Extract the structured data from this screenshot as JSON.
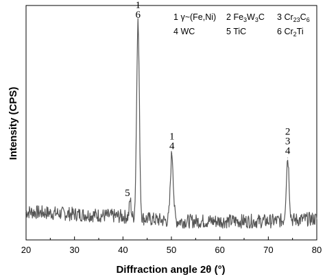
{
  "chart_data": {
    "type": "line",
    "xlabel": "Diffraction angle 2θ (°)",
    "ylabel": "Intensity (CPS)",
    "xlim": [
      20,
      80
    ],
    "x_ticks": [
      20,
      30,
      40,
      50,
      60,
      70,
      80
    ],
    "y_tick_labels": "none",
    "grid": false,
    "line_color": "#555555",
    "series": [
      {
        "peaks": [
          {
            "x": 41.5,
            "y": 0.17
          },
          {
            "x": 43.1,
            "y": 0.93
          },
          {
            "x": 50.1,
            "y": 0.37
          },
          {
            "x": 74.0,
            "y": 0.35
          }
        ],
        "baseline": [
          {
            "x": 20,
            "y": 0.12
          },
          {
            "x": 30,
            "y": 0.11
          },
          {
            "x": 40,
            "y": 0.1
          },
          {
            "x": 50,
            "y": 0.08
          },
          {
            "x": 60,
            "y": 0.08
          },
          {
            "x": 70,
            "y": 0.08
          },
          {
            "x": 80,
            "y": 0.09
          }
        ],
        "noise_amplitude": 0.03
      }
    ],
    "peak_annotations": [
      {
        "x": 41.5,
        "lines": [
          "5"
        ]
      },
      {
        "x": 43.1,
        "lines": [
          "1",
          "6"
        ]
      },
      {
        "x": 50.1,
        "lines": [
          "1",
          "4"
        ]
      },
      {
        "x": 74.0,
        "lines": [
          "2",
          "3",
          "4"
        ]
      }
    ],
    "legend": {
      "placement": "top-right",
      "entries": [
        {
          "num": "1",
          "text": "γ~(Fe,Ni)",
          "parts": [
            [
              "γ~(Fe,Ni)",
              ""
            ]
          ]
        },
        {
          "num": "2",
          "text": "Fe3W3C",
          "parts": [
            [
              "Fe",
              ""
            ],
            [
              "3",
              "sub"
            ],
            [
              "W",
              ""
            ],
            [
              "3",
              "sub"
            ],
            [
              "C",
              ""
            ]
          ]
        },
        {
          "num": "3",
          "text": "Cr23C6",
          "parts": [
            [
              "Cr",
              ""
            ],
            [
              "23",
              "sub"
            ],
            [
              "C",
              ""
            ],
            [
              "6",
              "sub"
            ]
          ]
        },
        {
          "num": "4",
          "text": "WC",
          "parts": [
            [
              "WC",
              ""
            ]
          ]
        },
        {
          "num": "5",
          "text": "TiC",
          "parts": [
            [
              "TiC",
              ""
            ]
          ]
        },
        {
          "num": "6",
          "text": "Cr2Ti",
          "parts": [
            [
              "Cr",
              ""
            ],
            [
              "2",
              "sub"
            ],
            [
              "Ti",
              ""
            ]
          ]
        }
      ]
    }
  }
}
